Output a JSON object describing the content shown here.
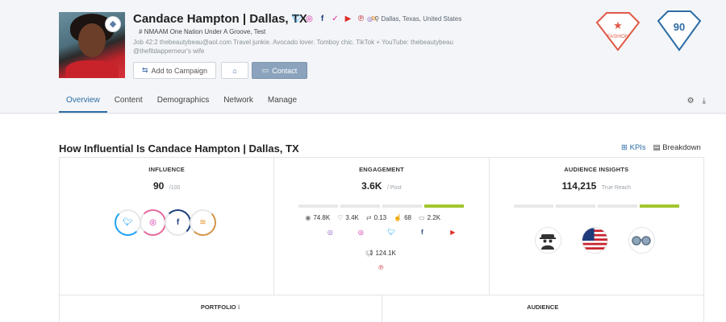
{
  "profile": {
    "name": "Candace Hampton | Dallas, TX",
    "location": "Dallas, Texas, United States",
    "tagline": "NMAAM One Nation Under A Groove, Test",
    "bio": "Job 42:2 thebeautybeau@aol.com Travel junkie. Avocado lover. Tomboy chic. TikTok + YouTube: thebeautybeau @thefitdapperneur's wife"
  },
  "buttons": {
    "add_campaign": "Add to Campaign",
    "contact": "Contact"
  },
  "badges": {
    "category": "FASHION",
    "score": "90"
  },
  "tabs": [
    "Overview",
    "Content",
    "Demographics",
    "Network",
    "Manage"
  ],
  "section": {
    "title": "How Influential Is Candace Hampton | Dallas, TX",
    "kpis_label": "KPIs",
    "breakdown_label": "Breakdown"
  },
  "influence": {
    "title": "INFLUENCE",
    "value": "90",
    "suffix": "/100"
  },
  "engagement": {
    "title": "ENGAGEMENT",
    "value": "3.6K",
    "suffix": "/ Post",
    "stats": [
      "74.8K",
      "3.4K",
      "0.13",
      "68",
      "2.2K"
    ],
    "extra_stat": "124.1K"
  },
  "audience_insights": {
    "title": "AUDIENCE INSIGHTS",
    "value": "114,215",
    "suffix": "True Reach"
  },
  "bottom": {
    "portfolio": "PORTFOLIO",
    "audience": "AUDIENCE"
  },
  "colors": {
    "accent": "#2c6da5",
    "fashion_badge": "#e05a47",
    "score_badge": "#2c6da5",
    "bar_active": "#a2c62f"
  }
}
